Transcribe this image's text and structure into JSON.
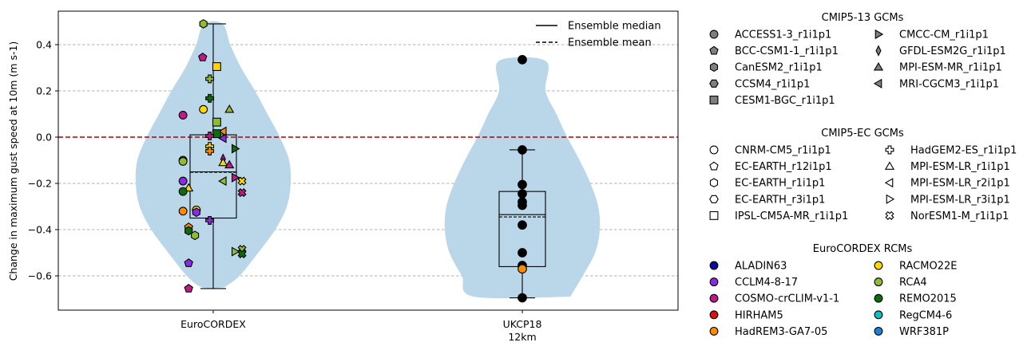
{
  "chart_data": {
    "type": "violin",
    "ylabel": "Change in maximum gust speed at 10m (m s-1)",
    "ylim": [
      -0.76,
      0.55
    ],
    "yticks": [
      0.4,
      0.2,
      0.0,
      -0.2,
      -0.4,
      -0.6
    ],
    "ytick_labels": [
      "0.4",
      "0.2",
      "0.0",
      "−0.2",
      "−0.4",
      "−0.6"
    ],
    "grid": "horizontal dashed",
    "zero_line": {
      "value": 0.0,
      "color": "#b00000"
    },
    "violin_color": "#bad6e9",
    "groups": [
      {
        "name_lines": [
          "EuroCORDEX"
        ],
        "box": {
          "whisker_low": -0.655,
          "q1": -0.35,
          "median": -0.15,
          "mean": -0.152,
          "q3": 0.01,
          "whisker_high": 0.49
        },
        "violin": {
          "values": [
            -0.65,
            -0.6,
            -0.5,
            -0.4,
            -0.3,
            -0.2,
            -0.1,
            0.0,
            0.1,
            0.2,
            0.3,
            0.4,
            0.49
          ],
          "widths": [
            0.14,
            0.34,
            0.58,
            0.8,
            0.95,
            1.0,
            0.98,
            0.86,
            0.7,
            0.54,
            0.36,
            0.22,
            0.12
          ]
        },
        "points": [
          {
            "dx": -0.28,
            "y": 0.49,
            "gcm": "CanESM2_r1i1p1",
            "rcm": "RCA4"
          },
          {
            "dx": -0.3,
            "y": 0.345,
            "gcm": "EC-EARTH_r12i1p1",
            "rcm": "COSMO-crCLIM-v1-1"
          },
          {
            "dx": 0.1,
            "y": 0.305,
            "gcm": "CESM1-BGC_r1i1p1",
            "rcm": "RACMO22E"
          },
          {
            "dx": -0.1,
            "y": 0.252,
            "gcm": "HadGEM2-ES_r1i1p1",
            "rcm": "RCA4"
          },
          {
            "dx": -0.1,
            "y": 0.168,
            "gcm": "HadGEM2-ES_r1i1p1",
            "rcm": "REMO2015"
          },
          {
            "dx": -0.28,
            "y": 0.12,
            "gcm": "CNRM-CM5_r1i1p1",
            "rcm": "RACMO22E"
          },
          {
            "dx": 0.46,
            "y": 0.12,
            "gcm": "MPI-ESM-MR_r1i1p1",
            "rcm": "RCA4"
          },
          {
            "dx": -0.86,
            "y": 0.095,
            "gcm": "CNRM-CM5_r1i1p1",
            "rcm": "COSMO-crCLIM-v1-1"
          },
          {
            "dx": 0.1,
            "y": 0.065,
            "gcm": "CESM1-BGC_r1i1p1",
            "rcm": "RCA4"
          },
          {
            "dx": 0.28,
            "y": 0.025,
            "gcm": "MRI-CGCM3_r1i1p1",
            "rcm": "HadREM3-GA7-05"
          },
          {
            "dx": 0.1,
            "y": 0.015,
            "gcm": "CESM1-BGC_r1i1p1",
            "rcm": "REMO2015"
          },
          {
            "dx": -0.1,
            "y": 0.005,
            "gcm": "HadGEM2-ES_r1i1p1",
            "rcm": "COSMO-crCLIM-v1-1"
          },
          {
            "dx": 0.28,
            "y": -0.005,
            "gcm": "MPI-ESM-LR_r2i1p1",
            "rcm": "CCLM4-8-17"
          },
          {
            "dx": -0.1,
            "y": -0.04,
            "gcm": "HadGEM2-ES_r1i1p1",
            "rcm": "RACMO22E"
          },
          {
            "dx": 0.62,
            "y": -0.05,
            "gcm": "CMCC-CM_r1i1p1",
            "rcm": "REMO2015"
          },
          {
            "dx": -0.1,
            "y": -0.06,
            "gcm": "HadGEM2-ES_r1i1p1",
            "rcm": "HadREM3-GA7-05"
          },
          {
            "dx": 0.28,
            "y": -0.095,
            "gcm": "GFDL-ESM2G_r1i1p1",
            "rcm": "COSMO-crCLIM-v1-1"
          },
          {
            "dx": -0.86,
            "y": -0.1,
            "gcm": "CNRM-CM5_r1i1p1",
            "rcm": "HadREM3-GA7-05"
          },
          {
            "dx": -0.86,
            "y": -0.105,
            "gcm": "CNRM-CM5_r1i1p1",
            "rcm": "RCA4"
          },
          {
            "dx": 0.28,
            "y": -0.11,
            "gcm": "MPI-ESM-MR_r1i1p1",
            "rcm": "RACMO22E"
          },
          {
            "dx": 0.46,
            "y": -0.12,
            "gcm": "MPI-ESM-MR_r1i1p1",
            "rcm": "COSMO-crCLIM-v1-1"
          },
          {
            "dx": 0.62,
            "y": -0.175,
            "gcm": "CMCC-CM_r1i1p1",
            "rcm": "COSMO-crCLIM-v1-1"
          },
          {
            "dx": 0.82,
            "y": -0.19,
            "gcm": "NorESM1-M_r1i1p1",
            "rcm": "RACMO22E"
          },
          {
            "dx": -0.86,
            "y": -0.19,
            "gcm": "CNRM-CM5_r1i1p1",
            "rcm": "CCLM4-8-17"
          },
          {
            "dx": 0.28,
            "y": -0.19,
            "gcm": "MRI-CGCM3_r1i1p1",
            "rcm": "RCA4"
          },
          {
            "dx": -0.7,
            "y": -0.22,
            "gcm": "MPI-ESM-LR_r1i1p1",
            "rcm": "RACMO22E"
          },
          {
            "dx": -0.86,
            "y": -0.235,
            "gcm": "CNRM-CM5_r1i1p1",
            "rcm": "REMO2015"
          },
          {
            "dx": 0.82,
            "y": -0.24,
            "gcm": "NorESM1-M_r1i1p1",
            "rcm": "COSMO-crCLIM-v1-1"
          },
          {
            "dx": -0.48,
            "y": -0.315,
            "gcm": "CNRM-CM5_r1i1p1",
            "rcm": "RACMO22E"
          },
          {
            "dx": -0.86,
            "y": -0.32,
            "gcm": "CNRM-CM5_r1i1p1",
            "rcm": "HadREM3-GA7-05"
          },
          {
            "dx": -0.48,
            "y": -0.325,
            "gcm": "CanESM2_r1i1p1",
            "rcm": "CCLM4-8-17"
          },
          {
            "dx": -0.1,
            "y": -0.36,
            "gcm": "HadGEM2-ES_r1i1p1",
            "rcm": "CCLM4-8-17"
          },
          {
            "dx": -0.7,
            "y": -0.39,
            "gcm": "EC-EARTH_r12i1p1",
            "rcm": "HadREM3-GA7-05"
          },
          {
            "dx": -0.7,
            "y": -0.405,
            "gcm": "CanESM2_r1i1p1",
            "rcm": "REMO2015"
          },
          {
            "dx": -0.52,
            "y": -0.425,
            "gcm": "CanESM2_r1i1p1",
            "rcm": "RCA4"
          },
          {
            "dx": 0.82,
            "y": -0.485,
            "gcm": "NorESM1-M_r1i1p1",
            "rcm": "RCA4"
          },
          {
            "dx": 0.62,
            "y": -0.495,
            "gcm": "MPI-ESM-LR_r3i1p1",
            "rcm": "RCA4"
          },
          {
            "dx": 0.82,
            "y": -0.505,
            "gcm": "NorESM1-M_r1i1p1",
            "rcm": "REMO2015"
          },
          {
            "dx": -0.7,
            "y": -0.545,
            "gcm": "EC-EARTH_r12i1p1",
            "rcm": "CCLM4-8-17"
          },
          {
            "dx": -0.7,
            "y": -0.655,
            "gcm": "EC-EARTH_r12i1p1",
            "rcm": "COSMO-crCLIM-v1-1"
          }
        ]
      },
      {
        "name_lines": [
          "UKCP18",
          "12km"
        ],
        "box": {
          "whisker_low": -0.695,
          "q1": -0.56,
          "median": -0.335,
          "mean": -0.345,
          "q3": -0.235,
          "whisker_high": -0.055
        },
        "violin": {
          "values": [
            -0.69,
            -0.6,
            -0.5,
            -0.4,
            -0.3,
            -0.2,
            -0.1,
            0.0,
            0.1,
            0.2,
            0.33
          ],
          "widths": [
            0.62,
            0.78,
            0.94,
            1.0,
            0.98,
            0.88,
            0.74,
            0.58,
            0.44,
            0.3,
            0.3
          ]
        },
        "points": [
          {
            "dx": 0,
            "y": 0.335,
            "gcm": "",
            "rcm": ""
          },
          {
            "dx": 0,
            "y": -0.055,
            "gcm": "",
            "rcm": ""
          },
          {
            "dx": 0,
            "y": -0.205,
            "gcm": "",
            "rcm": ""
          },
          {
            "dx": 0,
            "y": -0.245,
            "gcm": "",
            "rcm": ""
          },
          {
            "dx": 0,
            "y": -0.28,
            "gcm": "",
            "rcm": ""
          },
          {
            "dx": 0,
            "y": -0.295,
            "gcm": "",
            "rcm": ""
          },
          {
            "dx": 0,
            "y": -0.38,
            "gcm": "",
            "rcm": ""
          },
          {
            "dx": 0,
            "y": -0.5,
            "gcm": "",
            "rcm": ""
          },
          {
            "dx": 0,
            "y": -0.555,
            "gcm": "",
            "rcm": ""
          },
          {
            "dx": 0,
            "y": -0.57,
            "gcm": "",
            "rcm": "HadREM3-GA7-05"
          },
          {
            "dx": 0,
            "y": -0.695,
            "gcm": "",
            "rcm": ""
          }
        ]
      }
    ],
    "inner_legend": {
      "placement": "upper-right",
      "items": [
        {
          "label": "Ensemble median",
          "style": "solid"
        },
        {
          "label": "Ensemble mean",
          "style": "dashed"
        }
      ]
    }
  },
  "legends": [
    {
      "title": "CMIP5-13 GCMs",
      "fill": "#7f7f7f",
      "columns": [
        [
          {
            "label": "ACCESS1-3_r1i1p1",
            "marker": "circle"
          },
          {
            "label": "BCC-CSM1-1_r1i1p1",
            "marker": "pentagon"
          },
          {
            "label": "CanESM2_r1i1p1",
            "marker": "hexagon"
          },
          {
            "label": "CCSM4_r1i1p1",
            "marker": "hexagon2"
          },
          {
            "label": "CESM1-BGC_r1i1p1",
            "marker": "square"
          }
        ],
        [
          {
            "label": "CMCC-CM_r1i1p1",
            "marker": "tri-right"
          },
          {
            "label": "GFDL-ESM2G_r1i1p1",
            "marker": "thin-diamond"
          },
          {
            "label": "MPI-ESM-MR_r1i1p1",
            "marker": "tri-up"
          },
          {
            "label": "MRI-CGCM3_r1i1p1",
            "marker": "tri-left"
          }
        ]
      ]
    },
    {
      "title": "CMIP5-EC GCMs",
      "fill": "none",
      "columns": [
        [
          {
            "label": "CNRM-CM5_r1i1p1",
            "marker": "circle"
          },
          {
            "label": "EC-EARTH_r12i1p1",
            "marker": "pentagon"
          },
          {
            "label": "EC-EARTH_r1i1p1",
            "marker": "hexagon"
          },
          {
            "label": "EC-EARTH_r3i1p1",
            "marker": "hexagon2"
          },
          {
            "label": "IPSL-CM5A-MR_r1i1p1",
            "marker": "square"
          }
        ],
        [
          {
            "label": "HadGEM2-ES_r1i1p1",
            "marker": "plus"
          },
          {
            "label": "MPI-ESM-LR_r1i1p1",
            "marker": "tri-up"
          },
          {
            "label": "MPI-ESM-LR_r2i1p1",
            "marker": "tri-left"
          },
          {
            "label": "MPI-ESM-LR_r3i1p1",
            "marker": "tri-right"
          },
          {
            "label": "NorESM1-M_r1i1p1",
            "marker": "x"
          }
        ]
      ]
    },
    {
      "title": "EuroCORDEX RCMs",
      "columns": [
        [
          {
            "label": "ALADIN63",
            "color": "#0a0aa0"
          },
          {
            "label": "CCLM4-8-17",
            "color": "#8a2be2"
          },
          {
            "label": "COSMO-crCLIM-v1-1",
            "color": "#c0198a"
          },
          {
            "label": "HIRHAM5",
            "color": "#e01010"
          },
          {
            "label": "HadREM3-GA7-05",
            "color": "#ff8c00"
          }
        ],
        [
          {
            "label": "RACMO22E",
            "color": "#ffd700"
          },
          {
            "label": "RCA4",
            "color": "#8fbc30"
          },
          {
            "label": "REMO2015",
            "color": "#0a6e0a"
          },
          {
            "label": "RegCM4-6",
            "color": "#10c0c0"
          },
          {
            "label": "WRF381P",
            "color": "#1e7fd8"
          }
        ]
      ]
    }
  ]
}
